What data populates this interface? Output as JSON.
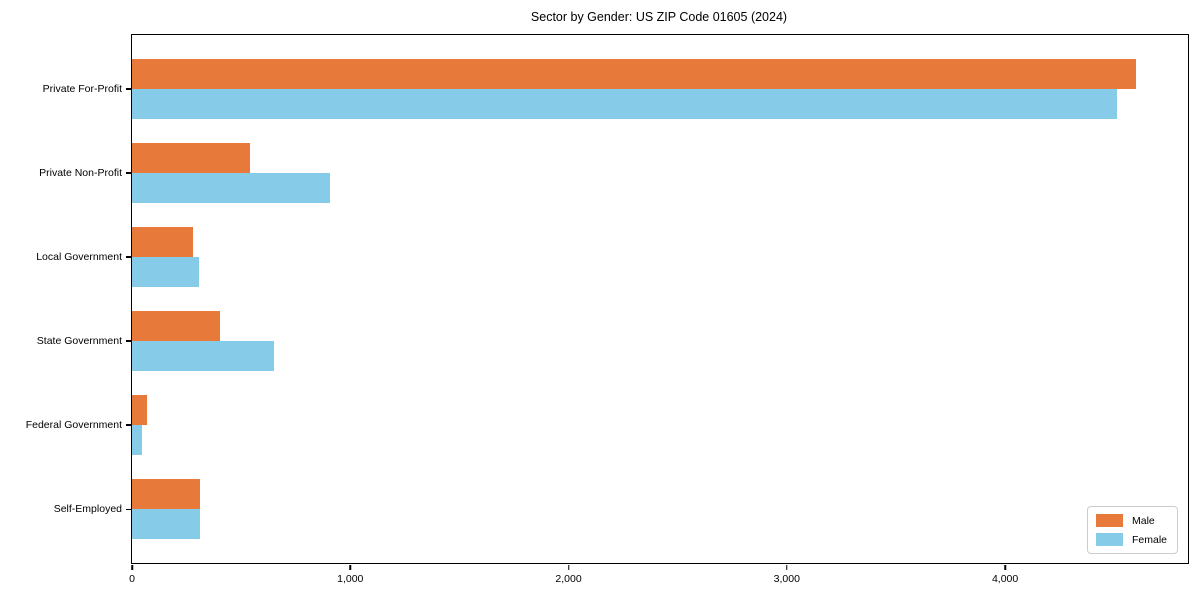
{
  "title": "Sector by Gender: US ZIP Code 01605 (2024)",
  "chart_data": {
    "type": "bar",
    "orientation": "horizontal",
    "title": "Sector by Gender: US ZIP Code 01605 (2024)",
    "categories": [
      "Private For-Profit",
      "Private Non-Profit",
      "Local Government",
      "State Government",
      "Federal Government",
      "Self-Employed"
    ],
    "series": [
      {
        "name": "Male",
        "color": "#E7793A",
        "values": [
          4600,
          540,
          280,
          405,
          68,
          310
        ]
      },
      {
        "name": "Female",
        "color": "#86CBE8",
        "values": [
          4515,
          905,
          305,
          650,
          45,
          310
        ]
      }
    ],
    "xlabel": "",
    "ylabel": "",
    "xlim": [
      0,
      4838
    ],
    "xticks": {
      "values": [
        0,
        1000,
        2000,
        3000,
        4000
      ],
      "labels": [
        "0",
        "1,000",
        "2,000",
        "3,000",
        "4,000"
      ]
    },
    "grid": false,
    "legend": {
      "position": "lower right",
      "entries": [
        "Male",
        "Female"
      ]
    }
  }
}
